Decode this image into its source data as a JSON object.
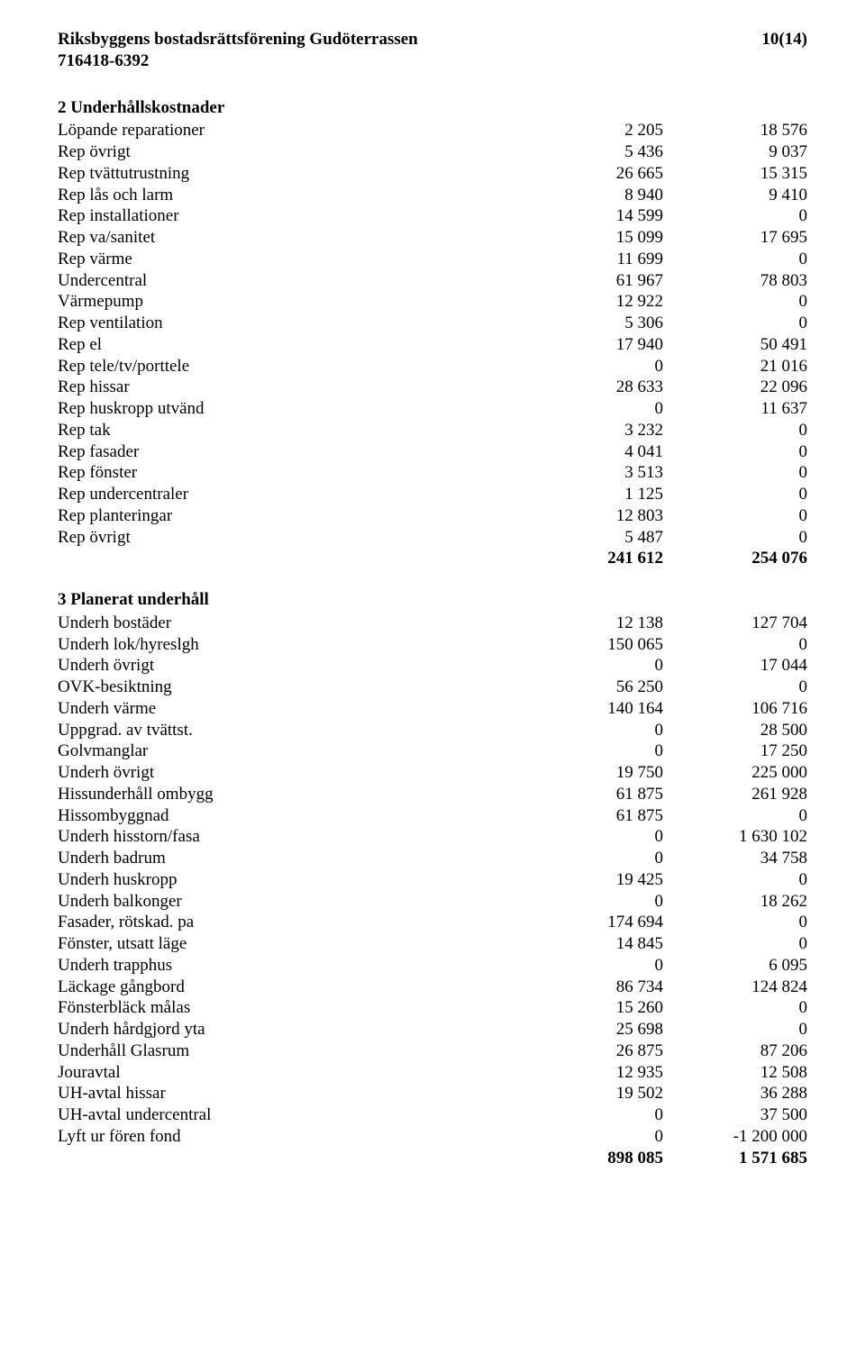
{
  "header": {
    "org_name": "Riksbyggens bostadsrättsförening Gudöterrassen",
    "org_no": "716418-6392",
    "page_no": "10(14)"
  },
  "sections": [
    {
      "title": "2 Underhållskostnader",
      "rows": [
        {
          "label": "Löpande reparationer",
          "c1": "2 205",
          "c2": "18 576"
        },
        {
          "label": "Rep övrigt",
          "c1": "5 436",
          "c2": "9 037"
        },
        {
          "label": "Rep tvättutrustning",
          "c1": "26 665",
          "c2": "15 315"
        },
        {
          "label": "Rep lås och larm",
          "c1": "8 940",
          "c2": "9 410"
        },
        {
          "label": "Rep installationer",
          "c1": "14 599",
          "c2": "0"
        },
        {
          "label": "Rep va/sanitet",
          "c1": "15 099",
          "c2": "17 695"
        },
        {
          "label": "Rep värme",
          "c1": "11 699",
          "c2": "0"
        },
        {
          "label": "Undercentral",
          "c1": "61 967",
          "c2": "78 803"
        },
        {
          "label": "Värmepump",
          "c1": "12 922",
          "c2": "0"
        },
        {
          "label": "Rep ventilation",
          "c1": "5 306",
          "c2": "0"
        },
        {
          "label": "Rep el",
          "c1": "17 940",
          "c2": "50 491"
        },
        {
          "label": "Rep tele/tv/porttele",
          "c1": "0",
          "c2": "21 016"
        },
        {
          "label": "Rep hissar",
          "c1": "28 633",
          "c2": "22 096"
        },
        {
          "label": "Rep huskropp utvänd",
          "c1": "0",
          "c2": "11 637"
        },
        {
          "label": "Rep tak",
          "c1": "3 232",
          "c2": "0"
        },
        {
          "label": "Rep fasader",
          "c1": "4 041",
          "c2": "0"
        },
        {
          "label": "Rep fönster",
          "c1": "3 513",
          "c2": "0"
        },
        {
          "label": "Rep undercentraler",
          "c1": "1 125",
          "c2": "0"
        },
        {
          "label": "Rep planteringar",
          "c1": "12 803",
          "c2": "0"
        },
        {
          "label": "Rep övrigt",
          "c1": "5 487",
          "c2": "0"
        }
      ],
      "total": {
        "label": "",
        "c1": "241 612",
        "c2": "254 076"
      }
    },
    {
      "title": "3 Planerat underhåll",
      "rows": [
        {
          "label": "Underh bostäder",
          "c1": "12 138",
          "c2": "127 704"
        },
        {
          "label": "Underh lok/hyreslgh",
          "c1": "150 065",
          "c2": "0"
        },
        {
          "label": "Underh övrigt",
          "c1": "0",
          "c2": "17 044"
        },
        {
          "label": "OVK-besiktning",
          "c1": "56 250",
          "c2": "0"
        },
        {
          "label": "Underh värme",
          "c1": "140 164",
          "c2": "106 716"
        },
        {
          "label": "Uppgrad. av tvättst.",
          "c1": "0",
          "c2": "28 500"
        },
        {
          "label": "Golvmanglar",
          "c1": "0",
          "c2": "17 250"
        },
        {
          "label": "Underh övrigt",
          "c1": "19 750",
          "c2": "225 000"
        },
        {
          "label": "Hissunderhåll ombygg",
          "c1": "61 875",
          "c2": "261 928"
        },
        {
          "label": "Hissombyggnad",
          "c1": "61 875",
          "c2": "0"
        },
        {
          "label": "Underh hisstorn/fasa",
          "c1": "0",
          "c2": "1 630 102"
        },
        {
          "label": "Underh badrum",
          "c1": "0",
          "c2": "34 758"
        },
        {
          "label": "Underh huskropp",
          "c1": "19 425",
          "c2": "0"
        },
        {
          "label": "Underh balkonger",
          "c1": "0",
          "c2": "18 262"
        },
        {
          "label": "Fasader, rötskad. pa",
          "c1": "174 694",
          "c2": "0"
        },
        {
          "label": "Fönster, utsatt läge",
          "c1": "14 845",
          "c2": "0"
        },
        {
          "label": "Underh trapphus",
          "c1": "0",
          "c2": "6 095"
        },
        {
          "label": "Läckage gångbord",
          "c1": "86 734",
          "c2": "124 824"
        },
        {
          "label": "Fönsterbläck målas",
          "c1": "15 260",
          "c2": "0"
        },
        {
          "label": "Underh hårdgjord yta",
          "c1": "25 698",
          "c2": "0"
        },
        {
          "label": "Underhåll Glasrum",
          "c1": "26 875",
          "c2": "87 206"
        },
        {
          "label": "Jouravtal",
          "c1": "12 935",
          "c2": "12 508"
        },
        {
          "label": "UH-avtal hissar",
          "c1": "19 502",
          "c2": "36 288"
        },
        {
          "label": "UH-avtal undercentral",
          "c1": "0",
          "c2": "37 500"
        },
        {
          "label": "Lyft ur fören fond",
          "c1": "0",
          "c2": "-1 200 000"
        }
      ],
      "total": {
        "label": "",
        "c1": "898 085",
        "c2": "1 571 685"
      }
    }
  ]
}
